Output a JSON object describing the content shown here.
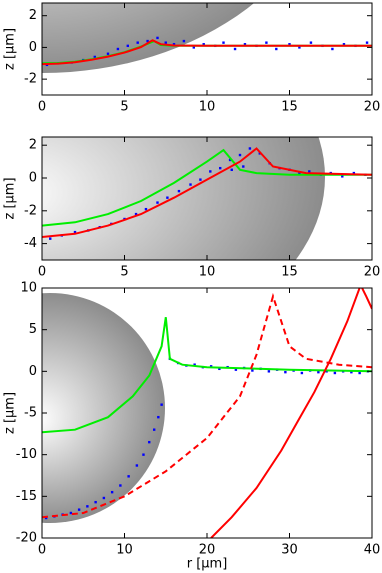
{
  "chart_data": [
    {
      "type": "line",
      "ylabel": "z [μm]",
      "xlim": [
        0,
        20
      ],
      "ylim": [
        -3,
        2.8
      ],
      "xticks": [
        0,
        5,
        10,
        15,
        20
      ],
      "yticks": [
        -2,
        0,
        2
      ],
      "series": [
        {
          "style": "points",
          "color": "#0000ff",
          "x": [
            0.3,
            1,
            1.8,
            2.5,
            3.2,
            4,
            4.6,
            5.2,
            5.8,
            6.4,
            7,
            7.5,
            8,
            8.6,
            9.2,
            9.8,
            10.5,
            11,
            11.7,
            12.3,
            13,
            13.6,
            14.2,
            15,
            15.6,
            16.3,
            17,
            17.6,
            18.3,
            19,
            19.7
          ],
          "values": [
            -1.1,
            -1.0,
            -0.95,
            -0.8,
            -0.6,
            -0.4,
            -0.1,
            0.1,
            0.3,
            0.4,
            0.6,
            0.3,
            0.2,
            0.4,
            0,
            0.2,
            0.1,
            0.3,
            -0.1,
            0.2,
            0.1,
            0.3,
            -0.1,
            0.2,
            0,
            0.3,
            0.1,
            -0.1,
            0.2,
            0.1,
            0.3
          ]
        },
        {
          "style": "solid",
          "color": "#00ee00",
          "x": [
            0,
            1,
            2,
            3,
            4,
            5,
            6,
            6.8,
            7.2,
            8,
            10,
            15,
            20
          ],
          "values": [
            -1,
            -0.98,
            -0.9,
            -0.75,
            -0.55,
            -0.3,
            0.05,
            0.4,
            0.15,
            0.1,
            0.1,
            0.1,
            0.1
          ]
        },
        {
          "style": "solid",
          "color": "#ff0000",
          "x": [
            0,
            1,
            2,
            3,
            4,
            5,
            6,
            6.7,
            7.2,
            8,
            10,
            15,
            20
          ],
          "values": [
            -1.05,
            -1.02,
            -0.93,
            -0.78,
            -0.58,
            -0.33,
            0.02,
            0.45,
            0.2,
            0.12,
            0.1,
            0.1,
            0.1
          ]
        }
      ]
    },
    {
      "type": "line",
      "ylabel": "z [μm]",
      "xlim": [
        0,
        20
      ],
      "ylim": [
        -5,
        2.5
      ],
      "xticks": [
        0,
        5,
        10,
        15,
        20
      ],
      "yticks": [
        -4,
        -2,
        0,
        2
      ],
      "series": [
        {
          "style": "points",
          "color": "#0000ff",
          "x": [
            0.5,
            1.2,
            2,
            2.8,
            3.5,
            4.2,
            5,
            5.7,
            6.3,
            7,
            7.6,
            8.3,
            9,
            9.6,
            10.2,
            10.8,
            11.4,
            12,
            12.6,
            13.2,
            13.8,
            14.4,
            15,
            15.6,
            16.2,
            16.9,
            17.5,
            18.2,
            18.9,
            19.6,
            11.5,
            12.2
          ],
          "values": [
            -3.7,
            -3.5,
            -3.3,
            -3.2,
            -3,
            -2.8,
            -2.5,
            -2.2,
            -1.9,
            -1.5,
            -1.2,
            -0.8,
            -0.4,
            -0.1,
            0.4,
            0.6,
            1.1,
            1.4,
            1.8,
            1.5,
            0.9,
            0.6,
            0.5,
            0.3,
            0.4,
            0.2,
            0.3,
            0.1,
            0.3,
            0.2,
            0.5,
            0.7
          ]
        },
        {
          "style": "solid",
          "color": "#00ee00",
          "x": [
            0,
            2,
            4,
            6,
            8,
            10,
            11,
            12,
            13,
            15,
            20
          ],
          "values": [
            -2.9,
            -2.7,
            -2.2,
            -1.4,
            -0.3,
            1.0,
            1.7,
            0.5,
            0.3,
            0.2,
            0.2
          ]
        },
        {
          "style": "solid",
          "color": "#ff0000",
          "x": [
            0,
            2,
            4,
            6,
            8,
            10,
            12,
            13,
            14,
            16,
            20
          ],
          "values": [
            -3.6,
            -3.4,
            -2.9,
            -2.2,
            -1.2,
            -0.1,
            1.0,
            1.8,
            0.7,
            0.3,
            0.2
          ]
        }
      ]
    },
    {
      "type": "line",
      "ylabel": "z [μm]",
      "xlabel": "r [μm]",
      "xlim": [
        0,
        40
      ],
      "ylim": [
        -20,
        10
      ],
      "xticks": [
        0,
        10,
        20,
        30,
        40
      ],
      "yticks": [
        -20,
        -15,
        -10,
        -5,
        0,
        5,
        10
      ],
      "series": [
        {
          "style": "points",
          "color": "#0000ff",
          "x": [
            0.5,
            1.5,
            2.5,
            3.5,
            4.5,
            5.5,
            6.5,
            7.5,
            8.5,
            9.5,
            10.5,
            11.5,
            12.3,
            13,
            13.6,
            14.1,
            14.5,
            15.5,
            16.5,
            17.5,
            18.5,
            19.5,
            20.5,
            21.5,
            22.5,
            23.5,
            24.5,
            25.5,
            26.5,
            27.5,
            28.5,
            29.5,
            30.5,
            31.5,
            32.5,
            33.5,
            34.5,
            35.5,
            36.5,
            37.5,
            38.5,
            39.5
          ],
          "values": [
            -17.6,
            -17.4,
            -17.2,
            -17,
            -16.6,
            -16.2,
            -15.7,
            -15.2,
            -14.5,
            -13.7,
            -12.6,
            -11.3,
            -10,
            -8.5,
            -7,
            -5.5,
            -4,
            1.5,
            1,
            0.7,
            0.8,
            0.5,
            0.6,
            0.3,
            0.5,
            0.2,
            0.4,
            0.1,
            0.3,
            0,
            0.2,
            -0.1,
            0.1,
            -0.2,
            0.1,
            -0.1,
            0,
            -0.2,
            0,
            -0.1,
            -0.2,
            0
          ]
        },
        {
          "style": "solid",
          "color": "#00ee00",
          "x": [
            0,
            4,
            8,
            11,
            13,
            14.5,
            15,
            15.5,
            17,
            20,
            30,
            40
          ],
          "values": [
            -7.3,
            -7,
            -5.5,
            -3,
            -0.5,
            3,
            6.5,
            1.5,
            0.8,
            0.5,
            0.2,
            0
          ]
        },
        {
          "style": "dashed",
          "color": "#ff0000",
          "x": [
            0,
            5,
            10,
            15,
            20,
            24,
            26,
            28,
            30,
            32,
            36,
            40
          ],
          "values": [
            -17.5,
            -17,
            -15,
            -12,
            -8,
            -3,
            2,
            9,
            3,
            1.5,
            0.8,
            0.5
          ]
        },
        {
          "style": "solid",
          "color": "#ff0000",
          "x": [
            20.5,
            23,
            26,
            29,
            31,
            33,
            35,
            37,
            38.5,
            null,
            38.8,
            39.3,
            40
          ],
          "values": [
            -20,
            -17.5,
            -14,
            -9.5,
            -6,
            -2.5,
            1.5,
            6,
            10,
            null,
            10,
            9,
            7.5
          ]
        }
      ]
    }
  ]
}
